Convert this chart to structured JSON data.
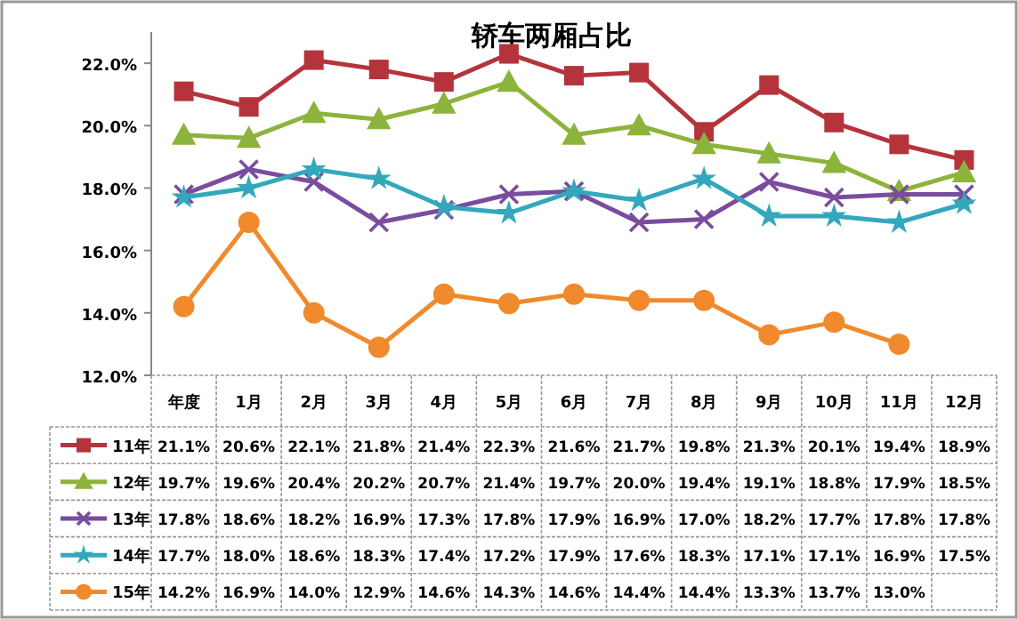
{
  "chart_data": {
    "type": "line",
    "title": "轿车两厢占比",
    "categories": [
      "年度",
      "1月",
      "2月",
      "3月",
      "4月",
      "5月",
      "6月",
      "7月",
      "8月",
      "9月",
      "10月",
      "11月",
      "12月"
    ],
    "ylim": [
      12,
      23
    ],
    "yticks": [
      {
        "value": 12,
        "label": "12.0%"
      },
      {
        "value": 14,
        "label": "14.0%"
      },
      {
        "value": 16,
        "label": "16.0%"
      },
      {
        "value": 18,
        "label": "18.0%"
      },
      {
        "value": 20,
        "label": "20.0%"
      },
      {
        "value": 22,
        "label": "22.0%"
      }
    ],
    "legend": "bottom",
    "series": [
      {
        "name": "11年",
        "color": "#b5343c",
        "marker": "square",
        "values": [
          21.1,
          20.6,
          22.1,
          21.8,
          21.4,
          22.3,
          21.6,
          21.7,
          19.8,
          21.3,
          20.1,
          19.4,
          18.9
        ],
        "value_labels": [
          "21.1%",
          "20.6%",
          "22.1%",
          "21.8%",
          "21.4%",
          "22.3%",
          "21.6%",
          "21.7%",
          "19.8%",
          "21.3%",
          "20.1%",
          "19.4%",
          "18.9%"
        ]
      },
      {
        "name": "12年",
        "color": "#8cb43c",
        "marker": "triangle",
        "values": [
          19.7,
          19.6,
          20.4,
          20.2,
          20.7,
          21.4,
          19.7,
          20.0,
          19.4,
          19.1,
          18.8,
          17.9,
          18.5
        ],
        "value_labels": [
          "19.7%",
          "19.6%",
          "20.4%",
          "20.2%",
          "20.7%",
          "21.4%",
          "19.7%",
          "20.0%",
          "19.4%",
          "19.1%",
          "18.8%",
          "17.9%",
          "18.5%"
        ]
      },
      {
        "name": "13年",
        "color": "#7a4c9e",
        "marker": "cross",
        "values": [
          17.8,
          18.6,
          18.2,
          16.9,
          17.3,
          17.8,
          17.9,
          16.9,
          17.0,
          18.2,
          17.7,
          17.8,
          17.8
        ],
        "value_labels": [
          "17.8%",
          "18.6%",
          "18.2%",
          "16.9%",
          "17.3%",
          "17.8%",
          "17.9%",
          "16.9%",
          "17.0%",
          "18.2%",
          "17.7%",
          "17.8%",
          "17.8%"
        ]
      },
      {
        "name": "14年",
        "color": "#33a8bc",
        "marker": "star",
        "values": [
          17.7,
          18.0,
          18.6,
          18.3,
          17.4,
          17.2,
          17.9,
          17.6,
          18.3,
          17.1,
          17.1,
          16.9,
          17.5
        ],
        "value_labels": [
          "17.7%",
          "18.0%",
          "18.6%",
          "18.3%",
          "17.4%",
          "17.2%",
          "17.9%",
          "17.6%",
          "18.3%",
          "17.1%",
          "17.1%",
          "16.9%",
          "17.5%"
        ]
      },
      {
        "name": "15年",
        "color": "#f08a2c",
        "marker": "circle",
        "values": [
          14.2,
          16.9,
          14.0,
          12.9,
          14.6,
          14.3,
          14.6,
          14.4,
          14.4,
          13.3,
          13.7,
          13.0,
          null
        ],
        "value_labels": [
          "14.2%",
          "16.9%",
          "14.0%",
          "12.9%",
          "14.6%",
          "14.3%",
          "14.6%",
          "14.4%",
          "14.4%",
          "13.3%",
          "13.7%",
          "13.0%",
          null
        ]
      }
    ]
  }
}
